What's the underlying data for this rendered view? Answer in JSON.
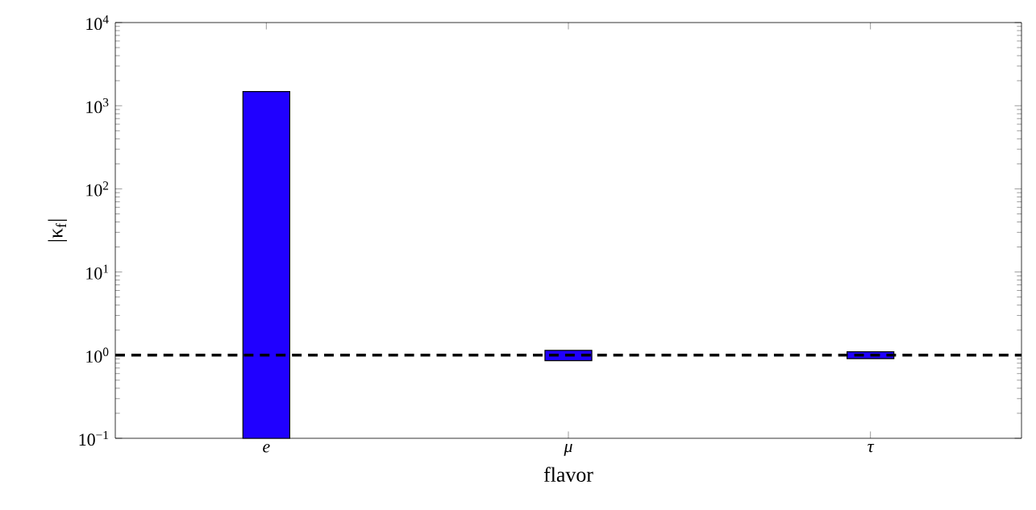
{
  "chart_data": {
    "type": "bar",
    "xlabel": "flavor",
    "ylabel": "|κ$_{f}$|",
    "categories": [
      "e",
      "μ",
      "τ"
    ],
    "values": [
      1479.9,
      0.28,
      0.19
    ],
    "base": [
      0.1,
      0.86,
      0.91
    ],
    "color": "#2000ff",
    "log": "y",
    "ylim": [
      0.1,
      10000
    ],
    "yticks": [
      {
        "value": 0.1,
        "label": "10$^{−1}$"
      },
      {
        "value": 1,
        "label": "10$^{0}$"
      },
      {
        "value": 10,
        "label": "10$^{1}$"
      },
      {
        "value": 100,
        "label": "10$^{2}$"
      },
      {
        "value": 1000,
        "label": "10$^{3}$"
      },
      {
        "value": 10000,
        "label": "10$^{4}$"
      }
    ],
    "ref_lines": [
      {
        "axis": "y",
        "value": 1,
        "color": "#000000",
        "line_style": "dashed"
      }
    ],
    "grid": false
  }
}
